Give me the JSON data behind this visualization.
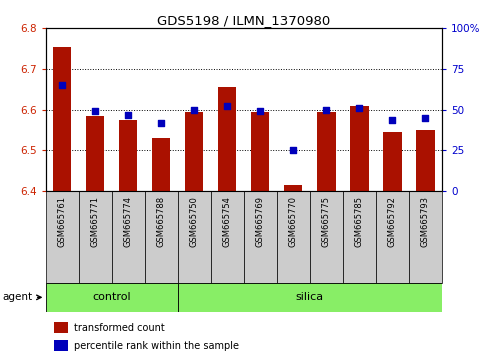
{
  "title": "GDS5198 / ILMN_1370980",
  "samples": [
    "GSM665761",
    "GSM665771",
    "GSM665774",
    "GSM665788",
    "GSM665750",
    "GSM665754",
    "GSM665769",
    "GSM665770",
    "GSM665775",
    "GSM665785",
    "GSM665792",
    "GSM665793"
  ],
  "red_values": [
    6.753,
    6.585,
    6.575,
    6.53,
    6.595,
    6.655,
    6.595,
    6.415,
    6.595,
    6.61,
    6.545,
    6.55
  ],
  "blue_values": [
    65,
    49,
    47,
    42,
    50,
    52,
    49,
    25,
    50,
    51,
    44,
    45
  ],
  "ylim_left": [
    6.4,
    6.8
  ],
  "ylim_right": [
    0,
    100
  ],
  "yticks_left": [
    6.4,
    6.5,
    6.6,
    6.7,
    6.8
  ],
  "yticks_right": [
    0,
    25,
    50,
    75,
    100
  ],
  "control_count": 4,
  "silica_count": 8,
  "bar_color": "#AA1100",
  "point_color": "#0000BB",
  "control_color": "#88EE66",
  "silica_color": "#88EE66",
  "agent_label": "agent",
  "control_label": "control",
  "silica_label": "silica",
  "legend_red": "transformed count",
  "legend_blue": "percentile rank within the sample",
  "bar_width": 0.55,
  "bar_bottom": 6.4
}
